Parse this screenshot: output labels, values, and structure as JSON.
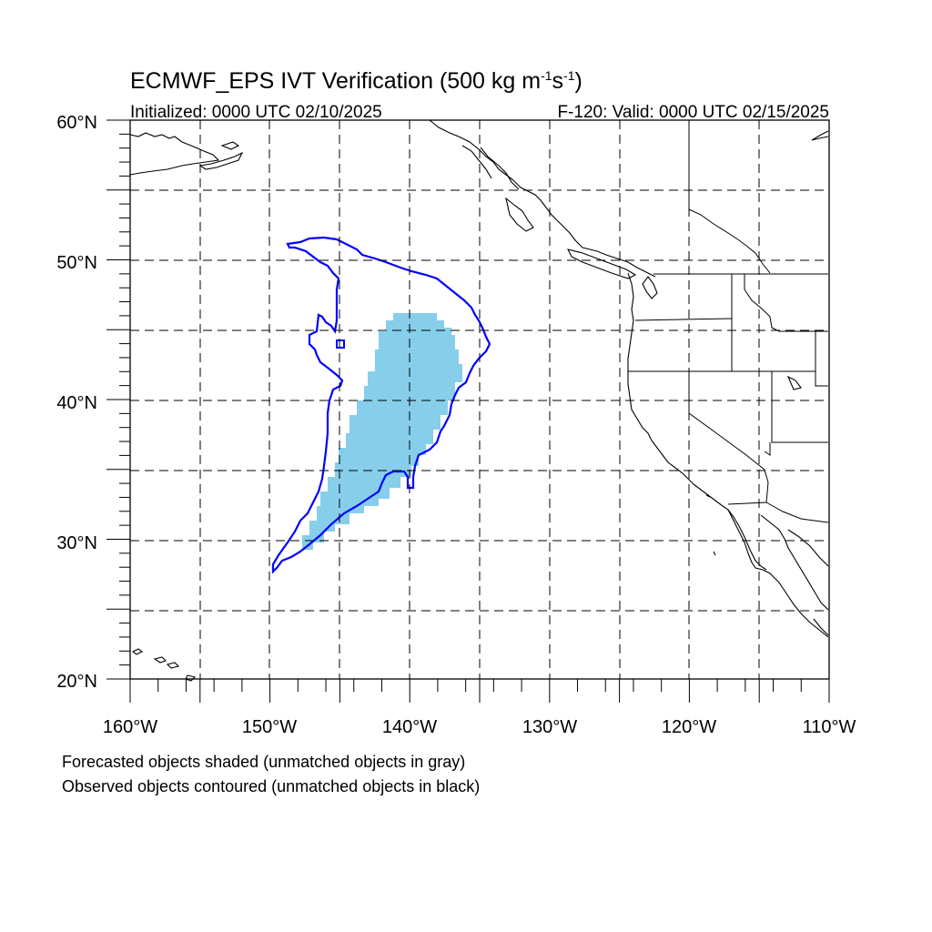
{
  "title": {
    "main": "ECMWF_EPS IVT Verification (500 kg m",
    "exp1": "-1",
    "mid": "s",
    "exp2": "-1",
    "close": ")"
  },
  "initialized": "Initialized: 0000 UTC 02/10/2025",
  "valid": "F-120: Valid: 0000 UTC 02/15/2025",
  "lat_labels": [
    "60°N",
    "50°N",
    "40°N",
    "30°N",
    "20°N"
  ],
  "lon_labels": [
    "160°W",
    "150°W",
    "140°W",
    "130°W",
    "120°W",
    "110°W"
  ],
  "footnote": {
    "line1": "Forecasted objects shaded (unmatched objects in gray)",
    "line2": "Observed objects contoured (unmatched objects in black)"
  },
  "colors": {
    "forecast_fill": "#87ceeb",
    "observed_contour": "#0000ff",
    "coastline": "#000000",
    "grid": "#000000"
  },
  "map_extent": {
    "lon": [
      -160,
      -110
    ],
    "lat": [
      20,
      60
    ],
    "grid_step_deg": 5
  }
}
